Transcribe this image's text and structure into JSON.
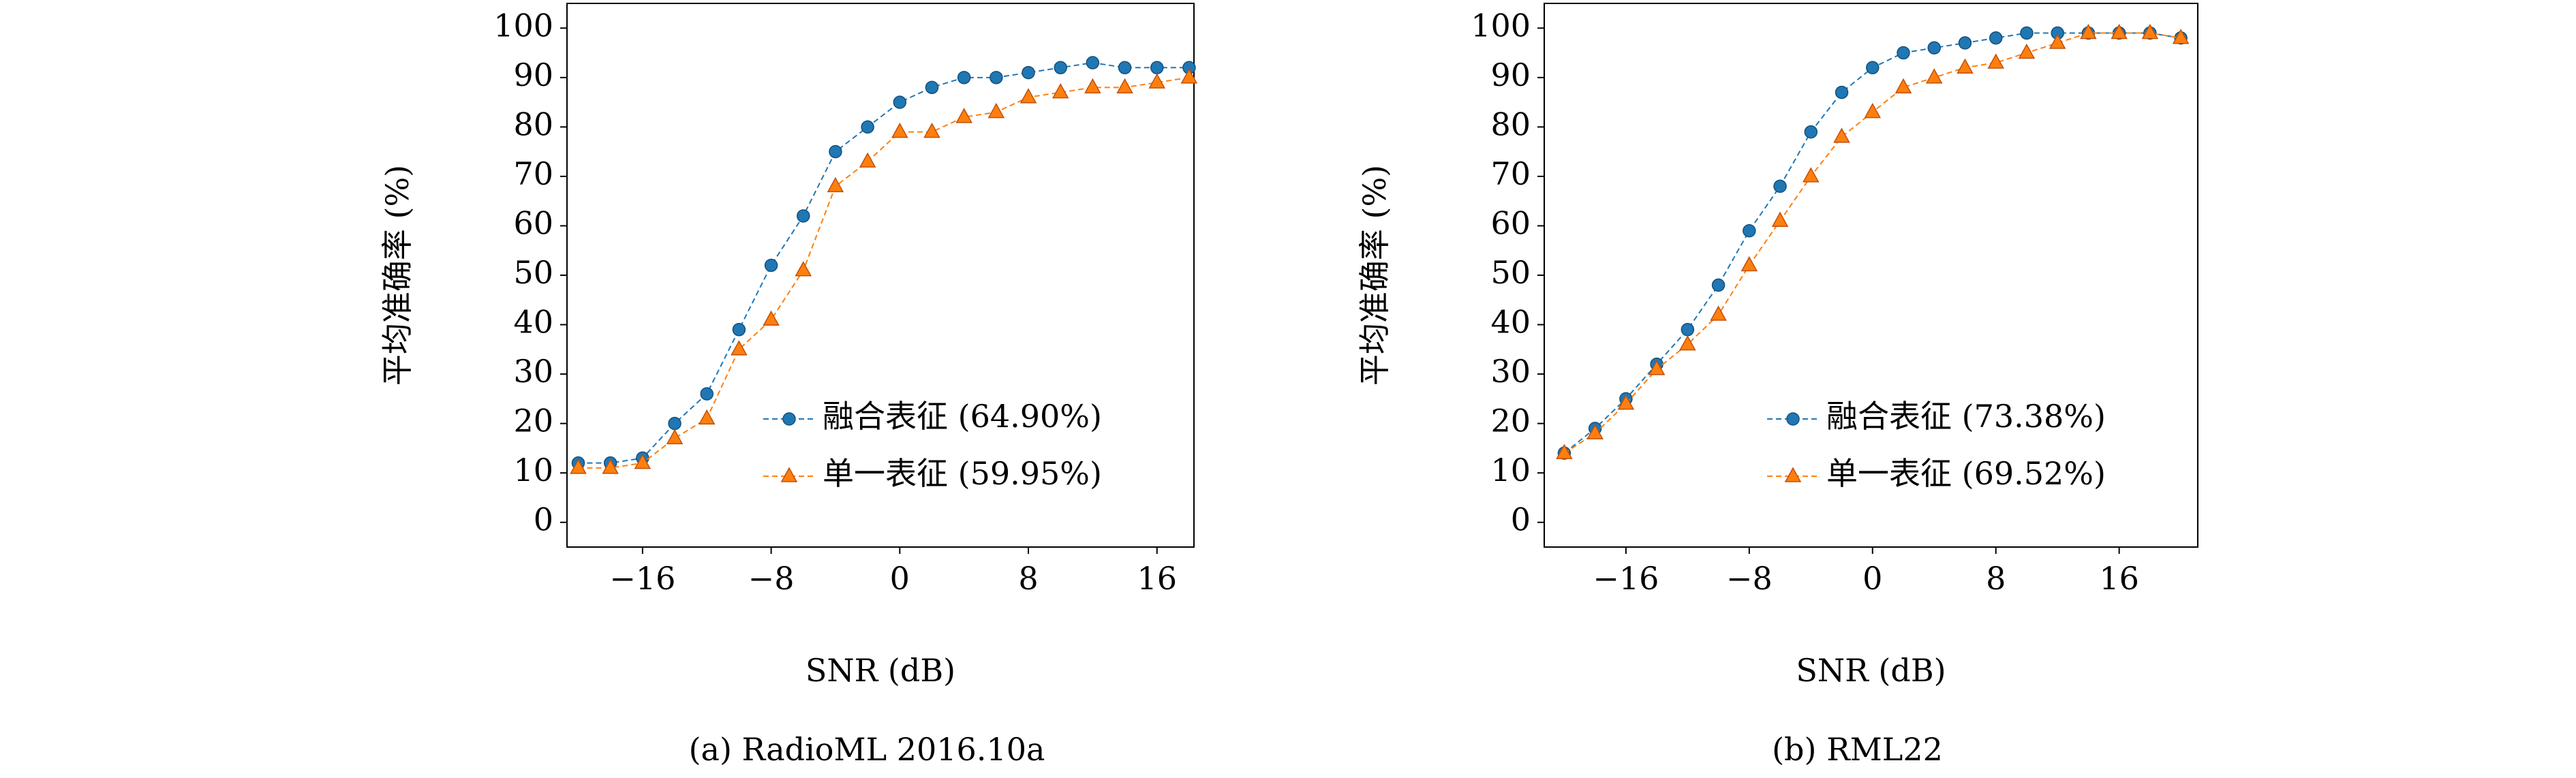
{
  "chart_data": [
    {
      "type": "line",
      "x_label": "SNR (dB)",
      "y_label": "平均准确率 (%)",
      "caption": "(a) RadioML 2016.10a",
      "x": [
        -20,
        -18,
        -16,
        -14,
        -12,
        -10,
        -8,
        -6,
        -4,
        -2,
        0,
        2,
        4,
        6,
        8,
        10,
        12,
        14,
        16,
        18
      ],
      "series": [
        {
          "name": "融合表征 (64.90%)",
          "color": "#1f77b4",
          "marker": "o",
          "values": [
            12,
            12,
            13,
            20,
            26,
            39,
            52,
            62,
            75,
            80,
            85,
            88,
            90,
            90,
            91,
            92,
            93,
            92,
            92,
            92
          ]
        },
        {
          "name": "单一表征 (59.95%)",
          "color": "#ff7f0e",
          "marker": "^",
          "values": [
            11,
            11,
            12,
            17,
            21,
            35,
            41,
            51,
            68,
            73,
            79,
            79,
            82,
            83,
            86,
            87,
            88,
            88,
            89,
            90
          ]
        }
      ],
      "xlim": [
        -20.7,
        18.3
      ],
      "ylim": [
        -5,
        105
      ],
      "xticks": [
        {
          "value": -16,
          "label": "−16"
        },
        {
          "value": -8,
          "label": "−8"
        },
        0,
        8,
        16
      ],
      "yticks": [
        0,
        10,
        20,
        30,
        40,
        50,
        60,
        70,
        80,
        90,
        100
      ],
      "grid": false,
      "legend": "lower right"
    },
    {
      "type": "line",
      "x_label": "SNR (dB)",
      "y_label": "平均准确率 (%)",
      "caption": "(b) RML22",
      "x": [
        -20,
        -18,
        -16,
        -14,
        -12,
        -10,
        -8,
        -6,
        -4,
        -2,
        0,
        2,
        4,
        6,
        8,
        10,
        12,
        14,
        16,
        18,
        20
      ],
      "series": [
        {
          "name": "融合表征 (73.38%)",
          "color": "#1f77b4",
          "marker": "o",
          "values": [
            14,
            19,
            25,
            32,
            39,
            48,
            59,
            68,
            79,
            87,
            92,
            95,
            96,
            97,
            98,
            99,
            99,
            99,
            99,
            99,
            98
          ]
        },
        {
          "name": "单一表征 (69.52%)",
          "color": "#ff7f0e",
          "marker": "^",
          "values": [
            14,
            18,
            24,
            31,
            36,
            42,
            52,
            61,
            70,
            78,
            83,
            88,
            90,
            92,
            93,
            95,
            97,
            99,
            99,
            99,
            98
          ]
        }
      ],
      "xlim": [
        -21.3,
        21.1
      ],
      "ylim": [
        -5,
        105
      ],
      "xticks": [
        {
          "value": -16,
          "label": "−16"
        },
        {
          "value": -8,
          "label": "−8"
        },
        0,
        8,
        16
      ],
      "yticks": [
        0,
        10,
        20,
        30,
        40,
        50,
        60,
        70,
        80,
        90,
        100
      ],
      "grid": false,
      "legend": "lower right"
    }
  ]
}
